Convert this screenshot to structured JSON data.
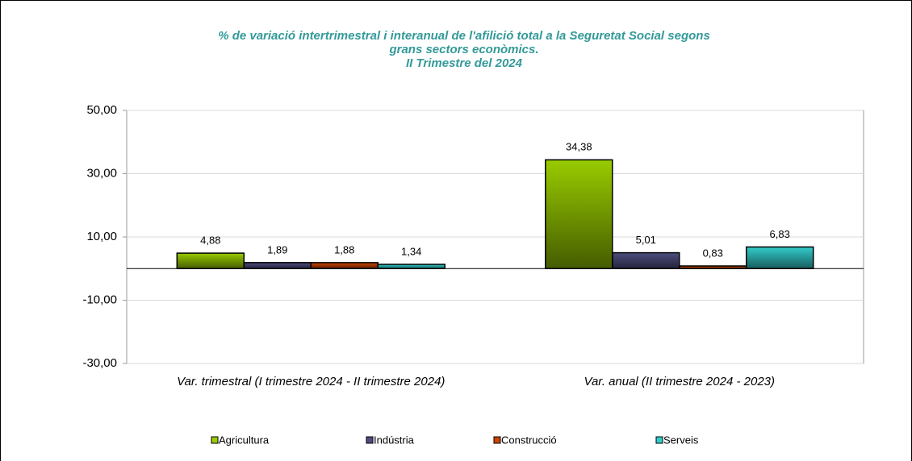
{
  "chart_data": {
    "type": "bar",
    "title": [
      "% de variació intertrimestral i interanual de l'afilició total a la Seguretat Social segons",
      "grans sectors econòmics.",
      "II Trimestre del 2024"
    ],
    "categories": [
      "Var. trimestral (I trimestre 2024 - II trimestre 2024)",
      "Var. anual (II trimestre 2024 - 2023)"
    ],
    "series": [
      {
        "name": "Agricultura",
        "color": "#99cc00",
        "values": [
          4.88,
          34.38
        ],
        "value_labels": [
          "4,88",
          "34,38"
        ]
      },
      {
        "name": "Indústria",
        "color": "#4d4d80",
        "values": [
          1.89,
          5.01
        ],
        "value_labels": [
          "1,89",
          "5,01"
        ]
      },
      {
        "name": "Construcció",
        "color": "#cc4400",
        "values": [
          1.88,
          0.83
        ],
        "value_labels": [
          "1,88",
          "0,83"
        ]
      },
      {
        "name": "Serveis",
        "color": "#33cccc",
        "values": [
          1.34,
          6.83
        ],
        "value_labels": [
          "1,34",
          "6,83"
        ]
      }
    ],
    "ylim": [
      -30,
      50
    ],
    "yticks": [
      {
        "value": -30,
        "label": "-30,00"
      },
      {
        "value": -10,
        "label": "-10,00"
      },
      {
        "value": 10,
        "label": "10,00"
      },
      {
        "value": 30,
        "label": "30,00"
      },
      {
        "value": 50,
        "label": "50,00"
      }
    ],
    "grid": true,
    "legend": "bottom"
  }
}
